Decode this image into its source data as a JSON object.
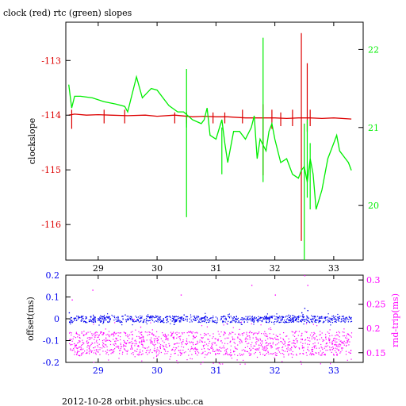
{
  "title": "clock (red) rtc (green) slopes",
  "footer": "2012-10-28  orbit.physics.ubc.ca",
  "colors": {
    "red": "#dd0000",
    "green": "#00ee00",
    "blue": "#0000ee",
    "magenta": "#ff00ff",
    "axis": "#000000"
  },
  "chart_data": [
    {
      "type": "line",
      "title": "clock (red) rtc (green) slopes",
      "xlim": [
        28.45,
        33.5
      ],
      "x_ticks": [
        "29",
        "30",
        "31",
        "32",
        "33"
      ],
      "ylabel": "clockslope",
      "ylim": [
        -116.65,
        -112.3
      ],
      "y_ticks": [
        "-113",
        "-114",
        "-115",
        "-116"
      ],
      "y2lim": [
        19.3,
        22.35
      ],
      "y2_ticks": [
        "22",
        "21",
        "20"
      ],
      "series": [
        {
          "axis": "left",
          "color": "#dd0000",
          "x": [
            28.5,
            28.6,
            28.8,
            29.0,
            29.2,
            29.5,
            29.8,
            30.0,
            30.3,
            30.6,
            30.8,
            31.0,
            31.2,
            31.5,
            31.8,
            32.0,
            32.2,
            32.4,
            32.6,
            32.8,
            33.0,
            33.3
          ],
          "y": [
            -114.0,
            -113.98,
            -114.0,
            -113.99,
            -114.0,
            -114.01,
            -114.0,
            -114.02,
            -114.0,
            -114.03,
            -114.02,
            -114.03,
            -114.03,
            -114.05,
            -114.05,
            -114.05,
            -114.06,
            -114.05,
            -114.05,
            -114.06,
            -114.05,
            -114.07
          ]
        },
        {
          "axis": "left",
          "type": "spikes",
          "color": "#dd0000",
          "x": [
            28.55,
            29.1,
            29.45,
            30.3,
            30.5,
            30.95,
            31.15,
            31.45,
            31.8,
            31.95,
            32.1,
            32.3,
            32.45,
            32.55,
            32.6
          ],
          "ymin": [
            -114.25,
            -114.15,
            -114.15,
            -114.15,
            -114.15,
            -114.15,
            -114.15,
            -114.15,
            -115.1,
            -114.25,
            -114.2,
            -114.2,
            -116.3,
            -114.3,
            -114.2
          ],
          "ymax": [
            -113.9,
            -113.9,
            -113.9,
            -113.95,
            -113.95,
            -113.95,
            -113.95,
            -113.9,
            -113.8,
            -113.9,
            -113.95,
            -113.9,
            -112.5,
            -113.05,
            -113.9
          ]
        },
        {
          "axis": "right",
          "color": "#00ee00",
          "x": [
            28.5,
            28.55,
            28.6,
            28.7,
            28.9,
            29.1,
            29.3,
            29.45,
            29.5,
            29.6,
            29.65,
            29.75,
            29.9,
            30.0,
            30.2,
            30.35,
            30.45,
            30.6,
            30.75,
            30.8,
            30.85,
            30.9,
            31.0,
            31.1,
            31.15,
            31.2,
            31.3,
            31.4,
            31.5,
            31.6,
            31.65,
            31.7,
            31.75,
            31.85,
            31.9,
            31.95,
            32.0,
            32.1,
            32.2,
            32.3,
            32.4,
            32.45,
            32.5,
            32.55,
            32.6,
            32.65,
            32.7,
            32.8,
            32.9,
            33.0,
            33.05,
            33.1,
            33.2,
            33.25,
            33.3
          ],
          "y": [
            21.55,
            21.25,
            21.4,
            21.4,
            21.38,
            21.33,
            21.3,
            21.27,
            21.2,
            21.5,
            21.65,
            21.38,
            21.5,
            21.48,
            21.28,
            21.2,
            21.2,
            21.1,
            21.05,
            21.1,
            21.25,
            20.9,
            20.85,
            21.1,
            20.8,
            20.55,
            20.95,
            20.95,
            20.85,
            21.0,
            21.15,
            20.6,
            20.85,
            20.7,
            20.95,
            21.05,
            20.85,
            20.55,
            20.6,
            20.4,
            20.35,
            20.45,
            20.5,
            20.3,
            20.6,
            20.4,
            19.95,
            20.2,
            20.6,
            20.8,
            20.9,
            20.7,
            20.6,
            20.55,
            20.45
          ]
        },
        {
          "axis": "right",
          "type": "spikes",
          "color": "#00ee00",
          "x": [
            30.5,
            30.5,
            31.1,
            31.8,
            32.5,
            32.55,
            32.6
          ],
          "ymin": [
            19.85,
            21.0,
            20.4,
            20.3,
            19.3,
            20.1,
            19.95
          ],
          "ymax": [
            21.75,
            21.1,
            21.0,
            22.15,
            21.05,
            21.1,
            20.8
          ]
        }
      ]
    },
    {
      "type": "scatter",
      "xlim": [
        28.45,
        33.5
      ],
      "x_ticks": [
        "29",
        "30",
        "31",
        "32",
        "33"
      ],
      "ylabel": "offset(ms)",
      "ylim": [
        -0.2,
        0.2
      ],
      "y_ticks": [
        "0.2",
        "0.1",
        "0",
        "-0.1",
        "-0.2"
      ],
      "y2label": "rnd-trip(ms)",
      "y2lim": [
        0.13,
        0.31
      ],
      "y2_ticks": [
        "0.3",
        "0.25",
        "0.2",
        "0.15"
      ],
      "series": [
        {
          "axis": "left",
          "color": "#0000ee",
          "x_range": [
            28.5,
            33.3
          ],
          "y_center": 0.0,
          "y_spread": 0.015,
          "outliers": [
            [
              28.5,
              0.03
            ],
            [
              29.45,
              0.02
            ],
            [
              30.45,
              0.02
            ],
            [
              32.45,
              0.03
            ],
            [
              32.5,
              0.05
            ],
            [
              32.55,
              0.04
            ]
          ]
        },
        {
          "axis": "right",
          "color": "#ff00ff",
          "x_range": [
            28.5,
            33.3
          ],
          "y_center": 0.17,
          "y_spread": 0.025,
          "outliers": [
            [
              28.55,
              0.26
            ],
            [
              28.9,
              0.28
            ],
            [
              29.6,
              0.22
            ],
            [
              30.4,
              0.27
            ],
            [
              31.6,
              0.29
            ],
            [
              32.0,
              0.27
            ],
            [
              32.5,
              0.31
            ],
            [
              32.55,
              0.29
            ]
          ]
        }
      ]
    }
  ]
}
